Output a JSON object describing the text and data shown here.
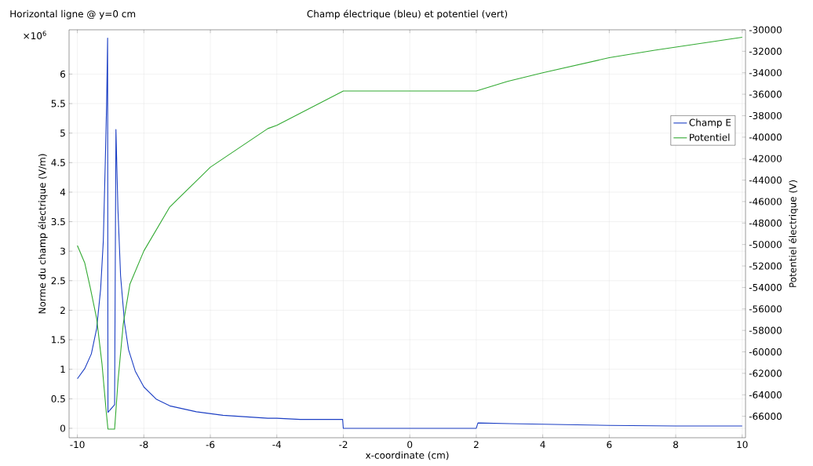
{
  "chart_data": {
    "type": "line",
    "title": "Champ électrique (bleu) et potentiel (vert)",
    "annotations": [
      "Horizontal ligne @ y=0 cm",
      "×10$^{6}$"
    ],
    "xlabel": "x-coordinate (cm)",
    "ylabel": "Norme du champ électrique (V/m)",
    "y2label": "Potentiel électrique (V)",
    "xlim": [
      -10.25,
      10.1
    ],
    "xticks": [
      -10,
      -8,
      -6,
      -4,
      -2,
      0,
      2,
      4,
      6,
      8,
      10
    ],
    "ylim": [
      -0.16,
      6.75
    ],
    "yticks": [
      0,
      0.5,
      1,
      1.5,
      2,
      2.5,
      3,
      3.5,
      4,
      4.5,
      5,
      5.5,
      6
    ],
    "y2lim": [
      -68000,
      -30000
    ],
    "y2ticks": [
      -66000,
      -64000,
      -62000,
      -60000,
      -58000,
      -56000,
      -54000,
      -52000,
      -50000,
      -48000,
      -46000,
      -44000,
      -42000,
      -40000,
      -38000,
      -36000,
      -34000,
      -32000,
      -30000
    ],
    "grid": true,
    "legend": "top right",
    "marker": "none",
    "line_style": "solid",
    "series": [
      {
        "name": "Champ E",
        "color": "#1c3fc4",
        "x": [
          -10,
          -9.78,
          -9.58,
          -9.42,
          -9.3,
          -9.22,
          -9.16,
          -9.12,
          -9.09,
          -9.08,
          -8.88,
          -8.84,
          -8.78,
          -8.7,
          -8.58,
          -8.46,
          -8.26,
          -8,
          -7.62,
          -7.22,
          -6.42,
          -5.62,
          -4.27,
          -4,
          -3.3,
          -2.02,
          -2,
          2,
          2.05,
          3,
          4,
          6,
          8,
          10
        ],
        "values": [
          0.84,
          1.01,
          1.26,
          1.69,
          2.36,
          3.17,
          4.52,
          5.5,
          6.61,
          0.27,
          0.4,
          5.06,
          3.71,
          2.58,
          1.78,
          1.33,
          0.97,
          0.7,
          0.49,
          0.38,
          0.28,
          0.22,
          0.17,
          0.17,
          0.15,
          0.15,
          0,
          0,
          0.09,
          0.08,
          0.07,
          0.05,
          0.04,
          0.04
        ]
      },
      {
        "name": "Potentiel",
        "color": "#33aa33",
        "axis": "y2",
        "x": [
          -10,
          -9.78,
          -9.62,
          -9.42,
          -9.26,
          -9.14,
          -9.08,
          -8.88,
          -8.78,
          -8.62,
          -8.42,
          -8,
          -7.22,
          -6,
          -4.27,
          -4,
          -3,
          -2,
          2,
          2.94,
          4,
          6,
          7.37,
          10
        ],
        "values": [
          -50100,
          -51700,
          -53900,
          -56900,
          -61100,
          -65300,
          -67200,
          -67200,
          -62800,
          -57400,
          -53700,
          -50600,
          -46500,
          -42800,
          -39200,
          -38900,
          -37300,
          -35700,
          -35700,
          -34800,
          -34000,
          -32600,
          -31900,
          -30700
        ]
      }
    ]
  }
}
